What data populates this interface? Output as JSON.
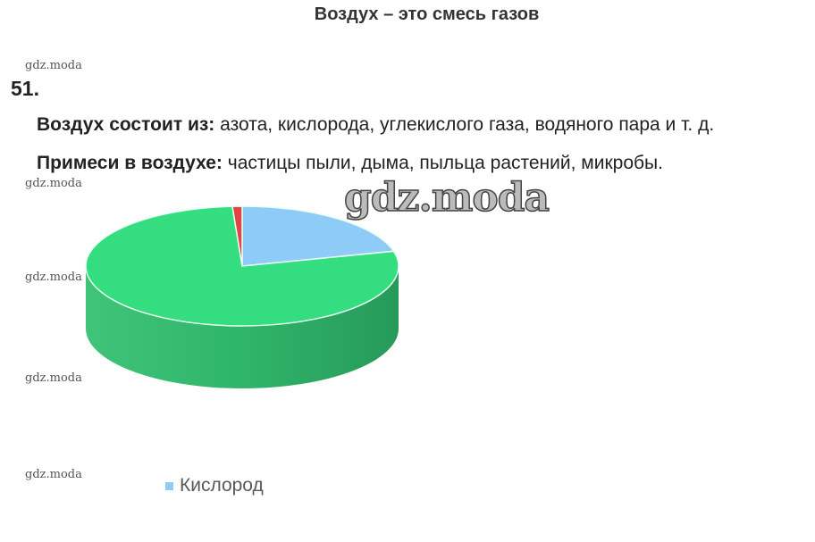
{
  "title": "Воздух – это смесь газов",
  "task_number": "51.",
  "lines": [
    {
      "label": "Воздух состоит из:",
      "text": " азота, кислорода, углекислого газа, водяного пара и т. д."
    },
    {
      "label": "Примеси в воздухе:",
      "text": " частицы пыли, дыма, пыльца растений, микробы."
    }
  ],
  "watermark": "gdz.moda",
  "chart_data": {
    "type": "pie",
    "style": "3d",
    "start": "top",
    "direction": "clockwise",
    "slices": [
      {
        "value": 21,
        "color": "#8ecbf7",
        "legend": "Кислород"
      },
      {
        "value": 78,
        "color": "#33dd80"
      },
      {
        "value": 1,
        "color": "#e04545"
      }
    ],
    "side_color": "#2eb56a",
    "legend_position": "bottom"
  }
}
